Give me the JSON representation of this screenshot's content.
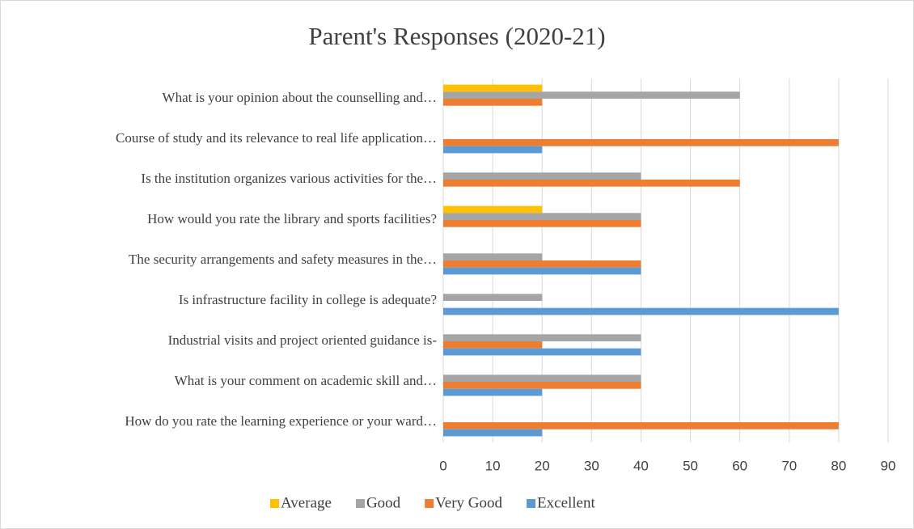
{
  "chart_data": {
    "type": "bar",
    "orientation": "horizontal",
    "title": "Parent's Responses (2020-21)",
    "categories": [
      "What is your opinion about the counselling and…",
      "Course of study and its relevance to real life application…",
      "Is the institution organizes various activities for the…",
      "How would you rate the library and sports facilities?",
      "The security arrangements and safety measures in the…",
      "Is infrastructure facility in college is adequate?",
      "Industrial visits and project oriented guidance is-",
      "What is your comment on academic skill and…",
      "How do you rate the learning experience or your ward…"
    ],
    "series": [
      {
        "name": "Average",
        "color": "#ffc000",
        "values": [
          20,
          0,
          0,
          20,
          0,
          0,
          0,
          0,
          0
        ]
      },
      {
        "name": "Good",
        "color": "#a5a5a5",
        "values": [
          60,
          0,
          40,
          40,
          20,
          20,
          40,
          40,
          0
        ]
      },
      {
        "name": "Very Good",
        "color": "#ed7d31",
        "values": [
          20,
          80,
          60,
          40,
          40,
          0,
          20,
          40,
          80
        ]
      },
      {
        "name": "Excellent",
        "color": "#5b9bd5",
        "values": [
          0,
          20,
          0,
          0,
          40,
          80,
          40,
          20,
          20
        ]
      }
    ],
    "xlim": [
      0,
      90
    ],
    "xticks": [
      0,
      10,
      20,
      30,
      40,
      50,
      60,
      70,
      80,
      90
    ],
    "grid": true,
    "legend": "bottom"
  }
}
